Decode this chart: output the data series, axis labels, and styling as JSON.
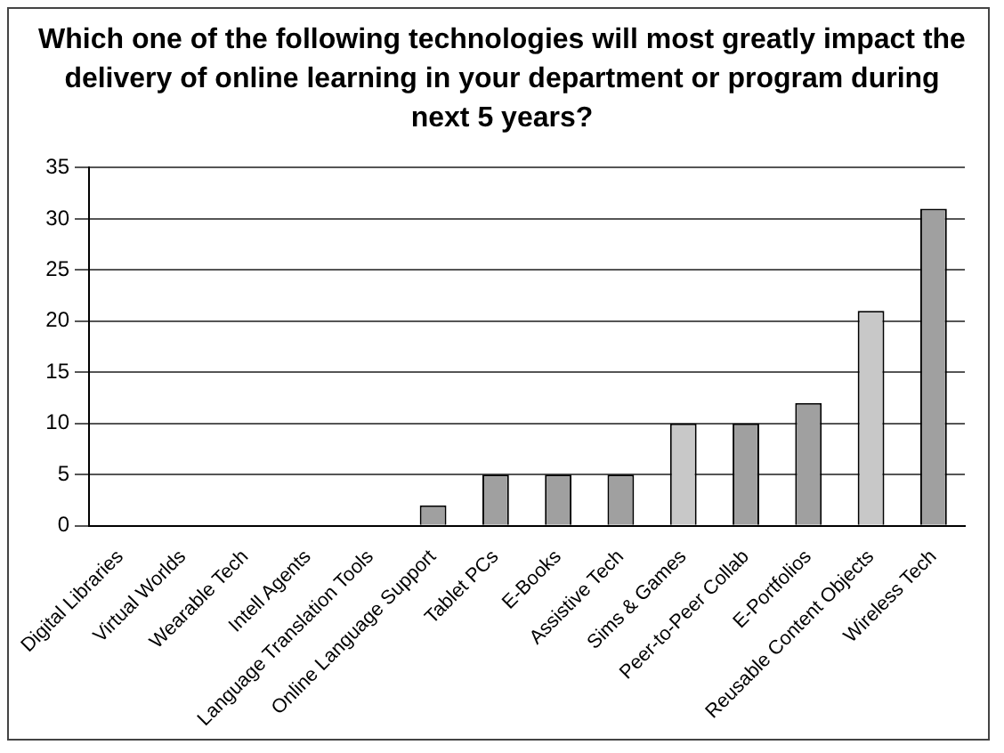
{
  "chart_data": {
    "type": "bar",
    "title": "Which one of the following technologies will most greatly impact the delivery of online learning in your department or program during next 5 years?",
    "categories": [
      "Digital Libraries",
      "Virtual Worlds",
      "Wearable Tech",
      "Intell Agents",
      "Language Translation Tools",
      "Online Language Support",
      "Tablet PCs",
      "E-Books",
      "Assistive Tech",
      "Sims & Games",
      "Peer-to-Peer Collab",
      "E-Portfolios",
      "Reusable Content Objects",
      "Wireless Tech"
    ],
    "values": [
      0,
      0,
      0,
      0,
      0,
      2,
      5,
      5,
      5,
      10,
      10,
      12,
      21,
      31
    ],
    "colors": [
      "#a0a0a0",
      "#a0a0a0",
      "#a0a0a0",
      "#a0a0a0",
      "#a0a0a0",
      "#a0a0a0",
      "#a0a0a0",
      "#a0a0a0",
      "#a0a0a0",
      "#c8c8c8",
      "#a0a0a0",
      "#a0a0a0",
      "#c8c8c8",
      "#a0a0a0"
    ],
    "ylim": [
      0,
      35
    ],
    "yticks": [
      0,
      5,
      10,
      15,
      20,
      25,
      30,
      35
    ],
    "grid": "y",
    "legend": false
  }
}
